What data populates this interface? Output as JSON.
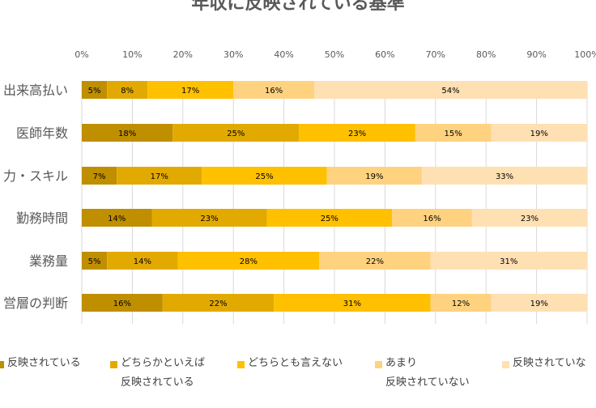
{
  "chart_data": {
    "type": "bar",
    "orientation": "horizontal",
    "stacked": "percent",
    "title": "年収に反映されている基準",
    "xlim": [
      0,
      100
    ],
    "xticks": [
      "0%",
      "10%",
      "20%",
      "30%",
      "40%",
      "50%",
      "60%",
      "70%",
      "80%",
      "90%",
      "100%"
    ],
    "categories": [
      "出来高払い",
      "医師年数",
      "力・スキル",
      "勤務時間",
      "業務量",
      "営層の判断"
    ],
    "series": [
      {
        "name": "反映されている",
        "color": "#BF8F00",
        "values": [
          5,
          18,
          7,
          14,
          5,
          16
        ]
      },
      {
        "name": "どちらかといえば 反映されている",
        "color": "#E2AA00",
        "values": [
          8,
          25,
          17,
          23,
          14,
          22
        ]
      },
      {
        "name": "どちらとも言えない",
        "color": "#FFC000",
        "values": [
          17,
          23,
          25,
          25,
          28,
          31
        ]
      },
      {
        "name": "あまり 反映されていない",
        "color": "#FFD280",
        "values": [
          16,
          15,
          19,
          16,
          22,
          12
        ]
      },
      {
        "name": "反映されていな",
        "color": "#FFE0B3",
        "values": [
          54,
          19,
          33,
          23,
          31,
          19
        ]
      }
    ],
    "legend_position": "bottom",
    "grid": true
  }
}
